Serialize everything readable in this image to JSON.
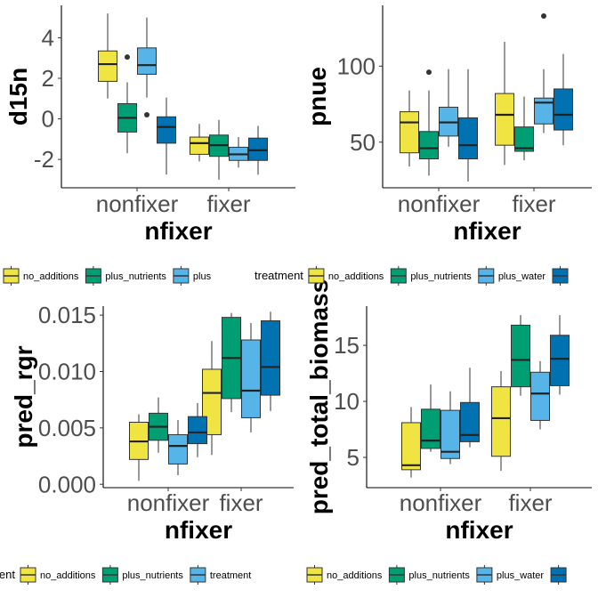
{
  "colors": {
    "no_additions": "#F0E442",
    "plus_nutrients": "#009E73",
    "plus_water": "#56B4E9",
    "plus_both": "#0072B2",
    "tick_text": "#4d4d4d",
    "label_text": "#000000"
  },
  "chart_data": [
    {
      "type": "boxplot",
      "xlabel": "nfixer",
      "ylabel": "d15n",
      "categories": [
        "nonfixer",
        "fixer"
      ],
      "ylim": [
        -3.4,
        5.6
      ],
      "yticks": [
        -2,
        0,
        2,
        4
      ],
      "ytick_labels": [
        "-2",
        "0",
        "2",
        "4"
      ],
      "series": [
        {
          "key": "no_additions",
          "boxes": [
            {
              "min": 1.0,
              "q1": 1.85,
              "median": 2.7,
              "q3": 3.35,
              "max": 5.2,
              "outliers": []
            },
            {
              "min": -2.1,
              "q1": -1.75,
              "median": -1.2,
              "q3": -0.9,
              "max": -0.25,
              "outliers": []
            }
          ]
        },
        {
          "key": "plus_nutrients",
          "boxes": [
            {
              "min": -1.7,
              "q1": -0.65,
              "median": 0.05,
              "q3": 0.75,
              "max": 1.8,
              "outliers": [
                3.05
              ]
            },
            {
              "min": -3.0,
              "q1": -1.85,
              "median": -1.3,
              "q3": -0.8,
              "max": -0.05,
              "outliers": []
            }
          ]
        },
        {
          "key": "plus_water",
          "boxes": [
            {
              "min": 1.05,
              "q1": 2.2,
              "median": 2.65,
              "q3": 3.5,
              "max": 5.0,
              "outliers": [
                0.2
              ]
            },
            {
              "min": -2.4,
              "q1": -2.05,
              "median": -1.75,
              "q3": -1.4,
              "max": -0.9,
              "outliers": []
            }
          ]
        },
        {
          "key": "plus_both",
          "boxes": [
            {
              "min": -2.75,
              "q1": -1.2,
              "median": -0.4,
              "q3": 0.1,
              "max": 1.05,
              "outliers": []
            },
            {
              "min": -2.75,
              "q1": -2.05,
              "median": -1.55,
              "q3": -0.95,
              "max": -0.35,
              "outliers": []
            }
          ]
        }
      ]
    },
    {
      "type": "boxplot",
      "xlabel": "nfixer",
      "ylabel": "pnue",
      "categories": [
        "nonfixer",
        "fixer"
      ],
      "ylim": [
        20,
        140
      ],
      "yticks": [
        50,
        100
      ],
      "ytick_labels": [
        "50",
        "100"
      ],
      "series": [
        {
          "key": "no_additions",
          "boxes": [
            {
              "min": 34,
              "q1": 43,
              "median": 63,
              "q3": 70,
              "max": 84,
              "outliers": []
            },
            {
              "min": 35,
              "q1": 48,
              "median": 68,
              "q3": 82,
              "max": 116,
              "outliers": []
            }
          ]
        },
        {
          "key": "plus_nutrients",
          "boxes": [
            {
              "min": 28,
              "q1": 39,
              "median": 46,
              "q3": 57,
              "max": 84,
              "outliers": [
                96
              ]
            },
            {
              "min": 38,
              "q1": 44,
              "median": 46,
              "q3": 60,
              "max": 80,
              "outliers": []
            }
          ]
        },
        {
          "key": "plus_water",
          "boxes": [
            {
              "min": 47,
              "q1": 54,
              "median": 63,
              "q3": 73,
              "max": 98,
              "outliers": []
            },
            {
              "min": 56,
              "q1": 62,
              "median": 76,
              "q3": 79,
              "max": 98,
              "outliers": [
                133
              ]
            }
          ]
        },
        {
          "key": "plus_both",
          "boxes": [
            {
              "min": 24,
              "q1": 39,
              "median": 48,
              "q3": 66,
              "max": 98,
              "outliers": []
            },
            {
              "min": 48,
              "q1": 58,
              "median": 68,
              "q3": 85,
              "max": 108,
              "outliers": []
            }
          ]
        }
      ]
    },
    {
      "type": "boxplot",
      "xlabel": "nfixer",
      "ylabel": "pred_rgr",
      "categories": [
        "nonfixer",
        "fixer"
      ],
      "ylim": [
        -0.0003,
        0.0158
      ],
      "yticks": [
        0.0,
        0.005,
        0.01,
        0.015
      ],
      "ytick_labels": [
        "0.000",
        "0.005",
        "0.010",
        "0.015"
      ],
      "series": [
        {
          "key": "no_additions",
          "boxes": [
            {
              "min": 0.0003,
              "q1": 0.0022,
              "median": 0.0038,
              "q3": 0.0055,
              "max": 0.0062,
              "outliers": []
            },
            {
              "min": 0.0026,
              "q1": 0.0044,
              "median": 0.0081,
              "q3": 0.0102,
              "max": 0.0127,
              "outliers": []
            }
          ]
        },
        {
          "key": "plus_nutrients",
          "boxes": [
            {
              "min": 0.0028,
              "q1": 0.0039,
              "median": 0.0051,
              "q3": 0.0063,
              "max": 0.0077,
              "outliers": []
            },
            {
              "min": 0.0064,
              "q1": 0.0076,
              "median": 0.0112,
              "q3": 0.0148,
              "max": 0.0152,
              "outliers": []
            }
          ]
        },
        {
          "key": "plus_water",
          "boxes": [
            {
              "min": 0.0008,
              "q1": 0.0018,
              "median": 0.0034,
              "q3": 0.0044,
              "max": 0.0057,
              "outliers": []
            },
            {
              "min": 0.0046,
              "q1": 0.0059,
              "median": 0.0083,
              "q3": 0.0128,
              "max": 0.0143,
              "outliers": []
            }
          ]
        },
        {
          "key": "plus_both",
          "boxes": [
            {
              "min": 0.0024,
              "q1": 0.0036,
              "median": 0.0046,
              "q3": 0.006,
              "max": 0.0072,
              "outliers": []
            },
            {
              "min": 0.0065,
              "q1": 0.0079,
              "median": 0.0104,
              "q3": 0.0145,
              "max": 0.0153,
              "outliers": []
            }
          ]
        }
      ]
    },
    {
      "type": "boxplot",
      "xlabel": "nfixer",
      "ylabel": "pred_total_biomass",
      "categories": [
        "nonfixer",
        "fixer"
      ],
      "ylim": [
        2.3,
        18.5
      ],
      "yticks": [
        5,
        10,
        15
      ],
      "ytick_labels": [
        "5",
        "10",
        "15"
      ],
      "series": [
        {
          "key": "no_additions",
          "boxes": [
            {
              "min": 3.2,
              "q1": 3.9,
              "median": 4.3,
              "q3": 8.1,
              "max": 9.5,
              "outliers": []
            },
            {
              "min": 3.8,
              "q1": 5.1,
              "median": 8.5,
              "q3": 11.3,
              "max": 12.7,
              "outliers": []
            }
          ]
        },
        {
          "key": "plus_nutrients",
          "boxes": [
            {
              "min": 5.5,
              "q1": 5.8,
              "median": 6.5,
              "q3": 9.3,
              "max": 11.5,
              "outliers": []
            },
            {
              "min": 10.5,
              "q1": 11.3,
              "median": 13.7,
              "q3": 16.8,
              "max": 17.7,
              "outliers": []
            }
          ]
        },
        {
          "key": "plus_water",
          "boxes": [
            {
              "min": 4.4,
              "q1": 4.9,
              "median": 5.5,
              "q3": 9.2,
              "max": 10.9,
              "outliers": []
            },
            {
              "min": 7.5,
              "q1": 8.3,
              "median": 10.7,
              "q3": 12.6,
              "max": 13.6,
              "outliers": []
            }
          ]
        },
        {
          "key": "plus_both",
          "boxes": [
            {
              "min": 5.9,
              "q1": 6.4,
              "median": 7.0,
              "q3": 9.9,
              "max": 13.0,
              "outliers": []
            },
            {
              "min": 10.6,
              "q1": 11.4,
              "median": 13.8,
              "q3": 15.9,
              "max": 17.7,
              "outliers": []
            }
          ]
        }
      ]
    }
  ],
  "legends": [
    {
      "title": "",
      "items": [
        {
          "key": "no_additions",
          "label": "no_additions"
        },
        {
          "key": "plus_nutrients",
          "label": "plus_nutrients"
        },
        {
          "key": "plus_water",
          "label": "plus"
        }
      ]
    },
    {
      "title": "treatment",
      "items": [
        {
          "key": "no_additions",
          "label": "no_additions"
        },
        {
          "key": "plus_nutrients",
          "label": "plus_nutrients"
        },
        {
          "key": "plus_water",
          "label": "plus_water"
        },
        {
          "key": "plus_both",
          "label": ""
        }
      ]
    },
    {
      "title": "eatment",
      "items": [
        {
          "key": "no_additions",
          "label": "no_additions"
        },
        {
          "key": "plus_nutrients",
          "label": "plus_nutrients"
        },
        {
          "key": "plus_water",
          "label": "treatment"
        }
      ]
    },
    {
      "title": "",
      "items": [
        {
          "key": "no_additions",
          "label": "no_additions"
        },
        {
          "key": "plus_nutrients",
          "label": "plus_nutrients"
        },
        {
          "key": "plus_water",
          "label": "plus_water"
        },
        {
          "key": "plus_both",
          "label": ""
        }
      ]
    }
  ]
}
